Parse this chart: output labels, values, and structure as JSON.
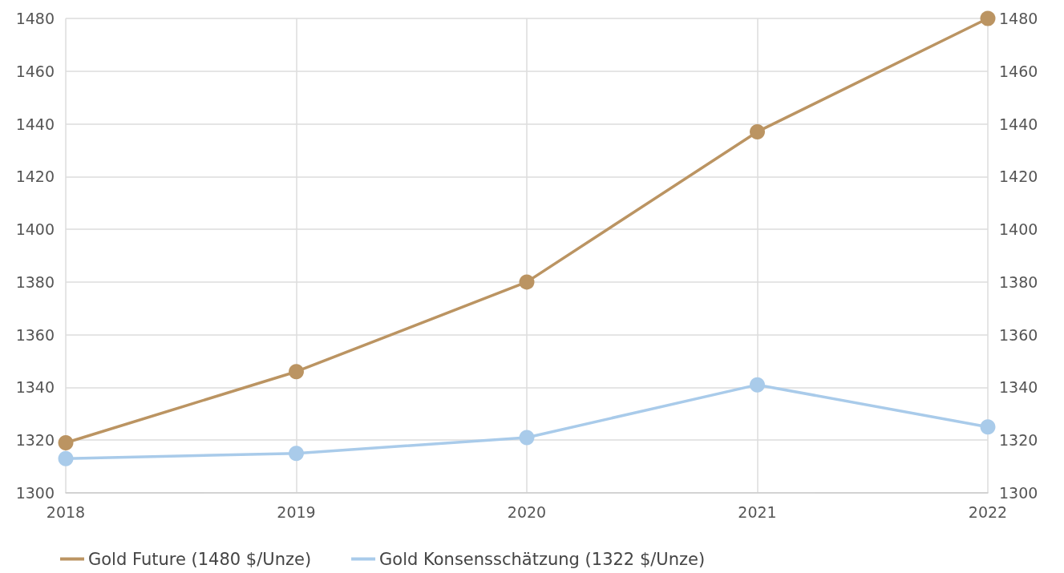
{
  "chart_data": {
    "type": "line",
    "categories": [
      "2018",
      "2019",
      "2020",
      "2021",
      "2022"
    ],
    "series": [
      {
        "name": "Gold Future (1480 $/Unze)",
        "color": "#bb9462",
        "values": [
          1319,
          1346,
          1380,
          1437,
          1480
        ]
      },
      {
        "name": "Gold Konsensschätzung (1322 $/Unze)",
        "color": "#a9cbea",
        "values": [
          1313,
          1315,
          1321,
          1341,
          1325
        ]
      }
    ],
    "ylim": [
      1300,
      1480
    ],
    "yticks": [
      1300,
      1320,
      1340,
      1360,
      1380,
      1400,
      1420,
      1440,
      1460,
      1480
    ],
    "y2lim": [
      1300,
      1480
    ],
    "y2ticks": [
      1300,
      1320,
      1340,
      1360,
      1380,
      1400,
      1420,
      1440,
      1460,
      1480
    ],
    "grid": true,
    "legend": "bottom left",
    "marker": "circle",
    "line_style": "solid"
  }
}
